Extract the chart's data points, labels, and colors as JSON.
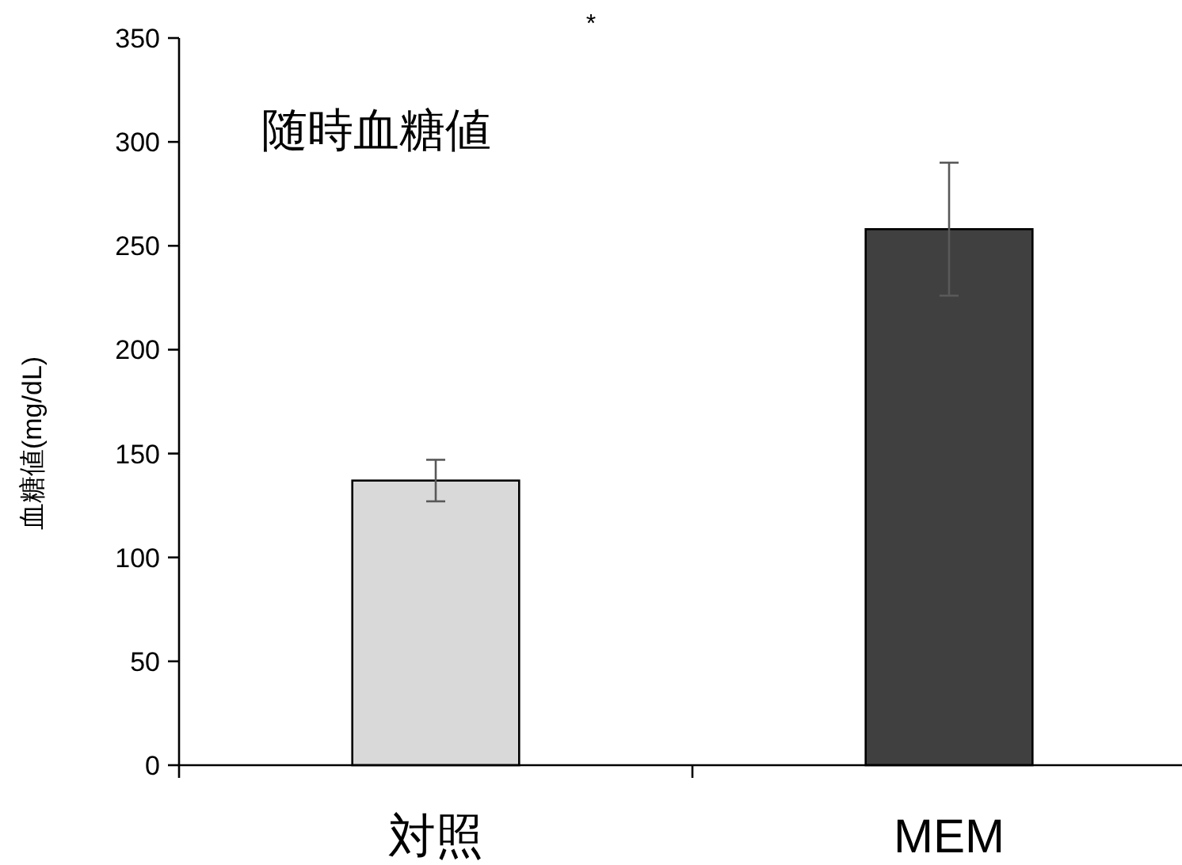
{
  "chart_data": {
    "type": "bar",
    "title": "随時血糖値",
    "ylabel": "血糖値(mg/dL)",
    "categories": [
      "対照",
      "MEM"
    ],
    "values": [
      137,
      258
    ],
    "errors": [
      10,
      32
    ],
    "colors": [
      "#d9d9d9",
      "#404040"
    ],
    "ylim": [
      0,
      350
    ],
    "yticks": [
      0,
      50,
      100,
      150,
      200,
      250,
      300,
      350
    ],
    "grid": false,
    "annotations": [
      "*"
    ]
  }
}
